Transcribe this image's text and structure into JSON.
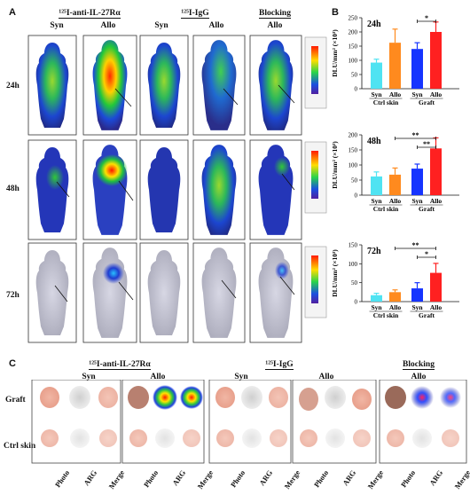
{
  "panels": {
    "a": "A",
    "b": "B",
    "c": "C"
  },
  "panel_a": {
    "groups": [
      {
        "label": "¹²⁵I-anti-IL-27Rα",
        "cols": [
          "Syn",
          "Allo"
        ]
      },
      {
        "label": "¹²⁵I-IgG",
        "cols": [
          "Syn",
          "Allo"
        ]
      },
      {
        "label": "Blocking",
        "cols": [
          "Allo"
        ]
      }
    ],
    "timepoints": [
      "24h",
      "48h",
      "72h"
    ]
  },
  "panel_c": {
    "groups": [
      {
        "label": "¹²⁵I-anti-IL-27Rα"
      },
      {
        "label": "¹²⁵I-IgG"
      },
      {
        "label": "Blocking"
      }
    ],
    "subgroups": [
      "Syn",
      "Allo",
      "Syn",
      "Allo",
      "Allo"
    ],
    "rows": [
      "Graft",
      "Ctrl skin"
    ],
    "cols": [
      "Photo",
      "ARG",
      "Merge"
    ]
  },
  "chart_data": [
    {
      "type": "bar",
      "title": "24h",
      "ylabel": "DLU/mm² (×10³)",
      "ylim": [
        0,
        250
      ],
      "yticks": [
        0,
        50,
        100,
        150,
        200,
        250
      ],
      "categories": [
        "Syn",
        "Allo",
        "Syn",
        "Allo"
      ],
      "groups": [
        "Ctrl skin",
        "Graft"
      ],
      "values": [
        92,
        162,
        140,
        200
      ],
      "errors": [
        12,
        48,
        22,
        35
      ],
      "colors": [
        "#4fe3f2",
        "#ff8a1e",
        "#1634ff",
        "#ff2020"
      ],
      "significance": [
        {
          "from": 2,
          "to": 3,
          "label": "*"
        }
      ]
    },
    {
      "type": "bar",
      "title": "48h",
      "ylabel": "DLU/mm² (×10³)",
      "ylim": [
        0,
        200
      ],
      "yticks": [
        0,
        50,
        100,
        150,
        200
      ],
      "categories": [
        "Syn",
        "Allo",
        "Syn",
        "Allo"
      ],
      "groups": [
        "Ctrl skin",
        "Graft"
      ],
      "values": [
        62,
        68,
        88,
        155
      ],
      "errors": [
        15,
        22,
        15,
        35
      ],
      "colors": [
        "#4fe3f2",
        "#ff8a1e",
        "#1634ff",
        "#ff2020"
      ],
      "significance": [
        {
          "from": 1,
          "to": 3,
          "label": "**"
        },
        {
          "from": 2,
          "to": 3,
          "label": "**"
        }
      ]
    },
    {
      "type": "bar",
      "title": "72h",
      "ylabel": "DLU/mm² (×10³)",
      "ylim": [
        0,
        150
      ],
      "yticks": [
        0,
        50,
        100,
        150
      ],
      "categories": [
        "Syn",
        "Allo",
        "Syn",
        "Allo"
      ],
      "groups": [
        "Ctrl skin",
        "Graft"
      ],
      "values": [
        17,
        25,
        35,
        76
      ],
      "errors": [
        5,
        6,
        15,
        25
      ],
      "colors": [
        "#4fe3f2",
        "#ff8a1e",
        "#1634ff",
        "#ff2020"
      ],
      "significance": [
        {
          "from": 1,
          "to": 3,
          "label": "**"
        },
        {
          "from": 2,
          "to": 3,
          "label": "*"
        }
      ]
    }
  ]
}
